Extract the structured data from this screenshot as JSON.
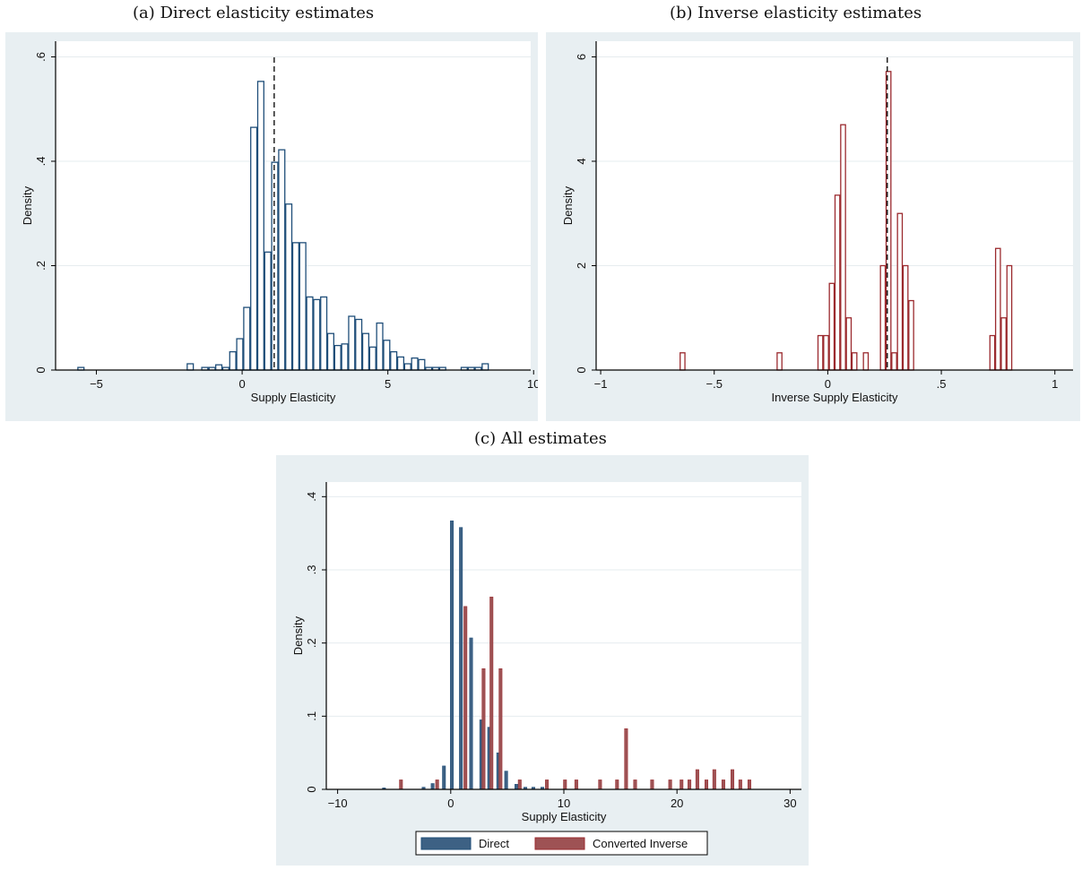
{
  "captions": {
    "a": "(a) Direct elasticity estimates",
    "b": "(b) Inverse elasticity estimates",
    "c": "(c) All estimates"
  },
  "colors": {
    "direct": "#1f4e79",
    "direct_fill": "#3d6184",
    "inverse": "#9b2a2e",
    "inverse_fill": "#9e5254",
    "panel_bg": "#e8eff2",
    "plot_bg": "#ffffff",
    "grid": "#e6ecef"
  },
  "chart_data": [
    {
      "id": "a",
      "type": "bar",
      "style": "outline-histogram",
      "xlabel": "Supply Elasticity",
      "ylabel": "Density",
      "xlim": [
        -6.4,
        9.9
      ],
      "ylim": [
        0,
        0.63
      ],
      "xticks": [
        -5,
        0,
        5,
        10
      ],
      "xtick_labels": [
        "−5",
        "0",
        "5",
        "10"
      ],
      "yticks": [
        0,
        0.2,
        0.4,
        0.6
      ],
      "ytick_labels": [
        "0",
        ".2",
        ".4",
        ".6"
      ],
      "bin_width": 0.24,
      "reference_line": 1.1,
      "grid": true,
      "bins": [
        [
          -5.65,
          0.005
        ],
        [
          -1.9,
          0.012
        ],
        [
          -1.4,
          0.005
        ],
        [
          -1.15,
          0.005
        ],
        [
          -0.92,
          0.01
        ],
        [
          -0.68,
          0.005
        ],
        [
          -0.44,
          0.035
        ],
        [
          -0.2,
          0.06
        ],
        [
          0.04,
          0.12
        ],
        [
          0.28,
          0.465
        ],
        [
          0.52,
          0.553
        ],
        [
          0.76,
          0.226
        ],
        [
          1.0,
          0.398
        ],
        [
          1.24,
          0.422
        ],
        [
          1.48,
          0.318
        ],
        [
          1.72,
          0.244
        ],
        [
          1.96,
          0.244
        ],
        [
          2.2,
          0.14
        ],
        [
          2.44,
          0.135
        ],
        [
          2.68,
          0.14
        ],
        [
          2.92,
          0.07
        ],
        [
          3.16,
          0.047
        ],
        [
          3.4,
          0.05
        ],
        [
          3.64,
          0.103
        ],
        [
          3.88,
          0.097
        ],
        [
          4.12,
          0.07
        ],
        [
          4.36,
          0.044
        ],
        [
          4.6,
          0.09
        ],
        [
          4.84,
          0.057
        ],
        [
          5.08,
          0.035
        ],
        [
          5.32,
          0.025
        ],
        [
          5.56,
          0.012
        ],
        [
          5.8,
          0.023
        ],
        [
          6.04,
          0.02
        ],
        [
          6.28,
          0.005
        ],
        [
          6.52,
          0.005
        ],
        [
          6.76,
          0.005
        ],
        [
          7.5,
          0.005
        ],
        [
          7.74,
          0.005
        ],
        [
          7.98,
          0.005
        ],
        [
          8.22,
          0.012
        ]
      ]
    },
    {
      "id": "b",
      "type": "bar",
      "style": "outline-histogram",
      "xlabel": "Inverse Supply Elasticity",
      "ylabel": "Density",
      "xlim": [
        -1.02,
        1.08
      ],
      "ylim": [
        0,
        6.3
      ],
      "xticks": [
        -1,
        -0.5,
        0,
        0.5,
        1
      ],
      "xtick_labels": [
        "−1",
        "−.5",
        "0",
        ".5",
        "1"
      ],
      "yticks": [
        0,
        2,
        4,
        6
      ],
      "ytick_labels": [
        "0",
        "2",
        "4",
        "6"
      ],
      "bin_width": 0.025,
      "reference_line": 0.262,
      "grid": true,
      "bins": [
        [
          -0.652,
          0.33
        ],
        [
          -0.225,
          0.33
        ],
        [
          -0.045,
          0.66
        ],
        [
          -0.02,
          0.66
        ],
        [
          0.005,
          1.66
        ],
        [
          0.03,
          3.35
        ],
        [
          0.055,
          4.7
        ],
        [
          0.08,
          1.0
        ],
        [
          0.105,
          0.33
        ],
        [
          0.155,
          0.33
        ],
        [
          0.23,
          2.0
        ],
        [
          0.255,
          5.72
        ],
        [
          0.28,
          0.33
        ],
        [
          0.305,
          3.0
        ],
        [
          0.33,
          2.0
        ],
        [
          0.355,
          1.33
        ],
        [
          0.712,
          0.66
        ],
        [
          0.737,
          2.33
        ],
        [
          0.762,
          1.0
        ],
        [
          0.787,
          2.0
        ]
      ]
    },
    {
      "id": "c",
      "type": "bar",
      "style": "grouped-bars",
      "xlabel": "Supply Elasticity",
      "ylabel": "Density",
      "xlim": [
        -11,
        31
      ],
      "ylim": [
        0,
        0.42
      ],
      "xticks": [
        -10,
        0,
        10,
        20,
        30
      ],
      "xtick_labels": [
        "−10",
        "0",
        "10",
        "20",
        "30"
      ],
      "yticks": [
        0,
        0.1,
        0.2,
        0.3,
        0.4
      ],
      "ytick_labels": [
        "0",
        ".1",
        ".2",
        ".3",
        ".4"
      ],
      "grid": true,
      "legend_position": "bottom",
      "series": [
        {
          "name": "Direct",
          "points": [
            [
              -5.9,
              0.002
            ],
            [
              -2.4,
              0.003
            ],
            [
              -1.6,
              0.008
            ],
            [
              -0.6,
              0.032
            ],
            [
              0.1,
              0.367
            ],
            [
              0.9,
              0.358
            ],
            [
              1.8,
              0.207
            ],
            [
              2.7,
              0.095
            ],
            [
              3.4,
              0.085
            ],
            [
              4.2,
              0.05
            ],
            [
              4.9,
              0.025
            ],
            [
              5.8,
              0.007
            ],
            [
              6.6,
              0.003
            ],
            [
              7.3,
              0.003
            ],
            [
              8.1,
              0.003
            ]
          ]
        },
        {
          "name": "Converted Inverse",
          "points": [
            [
              -4.4,
              0.013
            ],
            [
              -1.2,
              0.013
            ],
            [
              1.3,
              0.25
            ],
            [
              2.9,
              0.165
            ],
            [
              3.6,
              0.263
            ],
            [
              4.4,
              0.165
            ],
            [
              6.1,
              0.013
            ],
            [
              8.5,
              0.013
            ],
            [
              10.1,
              0.013
            ],
            [
              11.1,
              0.013
            ],
            [
              13.2,
              0.013
            ],
            [
              14.7,
              0.013
            ],
            [
              15.5,
              0.083
            ],
            [
              16.3,
              0.013
            ],
            [
              17.8,
              0.013
            ],
            [
              19.4,
              0.013
            ],
            [
              20.4,
              0.013
            ],
            [
              21.1,
              0.013
            ],
            [
              21.8,
              0.027
            ],
            [
              22.6,
              0.013
            ],
            [
              23.3,
              0.027
            ],
            [
              24.1,
              0.013
            ],
            [
              24.9,
              0.027
            ],
            [
              25.6,
              0.013
            ],
            [
              26.4,
              0.013
            ]
          ]
        }
      ]
    }
  ]
}
